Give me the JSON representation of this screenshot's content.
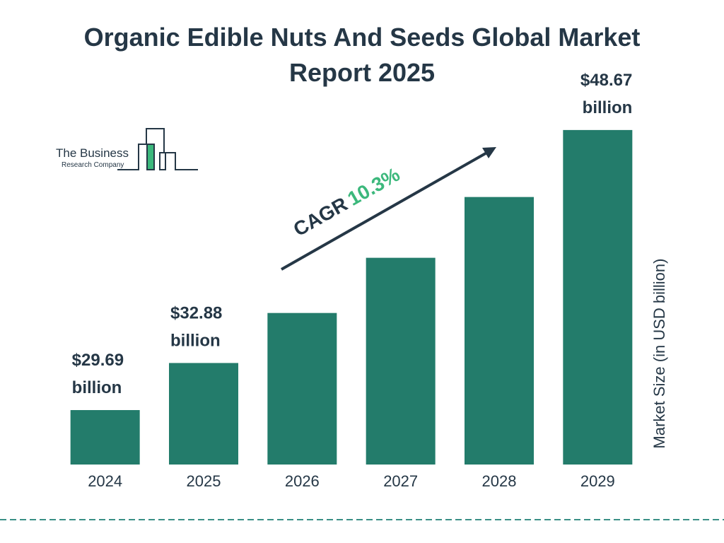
{
  "chart_data": {
    "type": "bar",
    "title": "Organic Edible Nuts And Seeds Global Market Report 2025",
    "y_label": "Market Size (in USD billion)",
    "categories": [
      "2024",
      "2025",
      "2026",
      "2027",
      "2028",
      "2029"
    ],
    "values": [
      29.69,
      32.88,
      36.27,
      40.01,
      44.13,
      48.67
    ],
    "value_labels": [
      "$29.69 billion",
      "$32.88 billion",
      null,
      null,
      null,
      "$48.67 billion"
    ],
    "color": "#237c6b",
    "ylim": [
      26,
      49
    ],
    "annotation": {
      "label": "CAGR",
      "value": "10.3%"
    },
    "logo": {
      "line1": "The Business",
      "line2": "Research Company"
    }
  }
}
